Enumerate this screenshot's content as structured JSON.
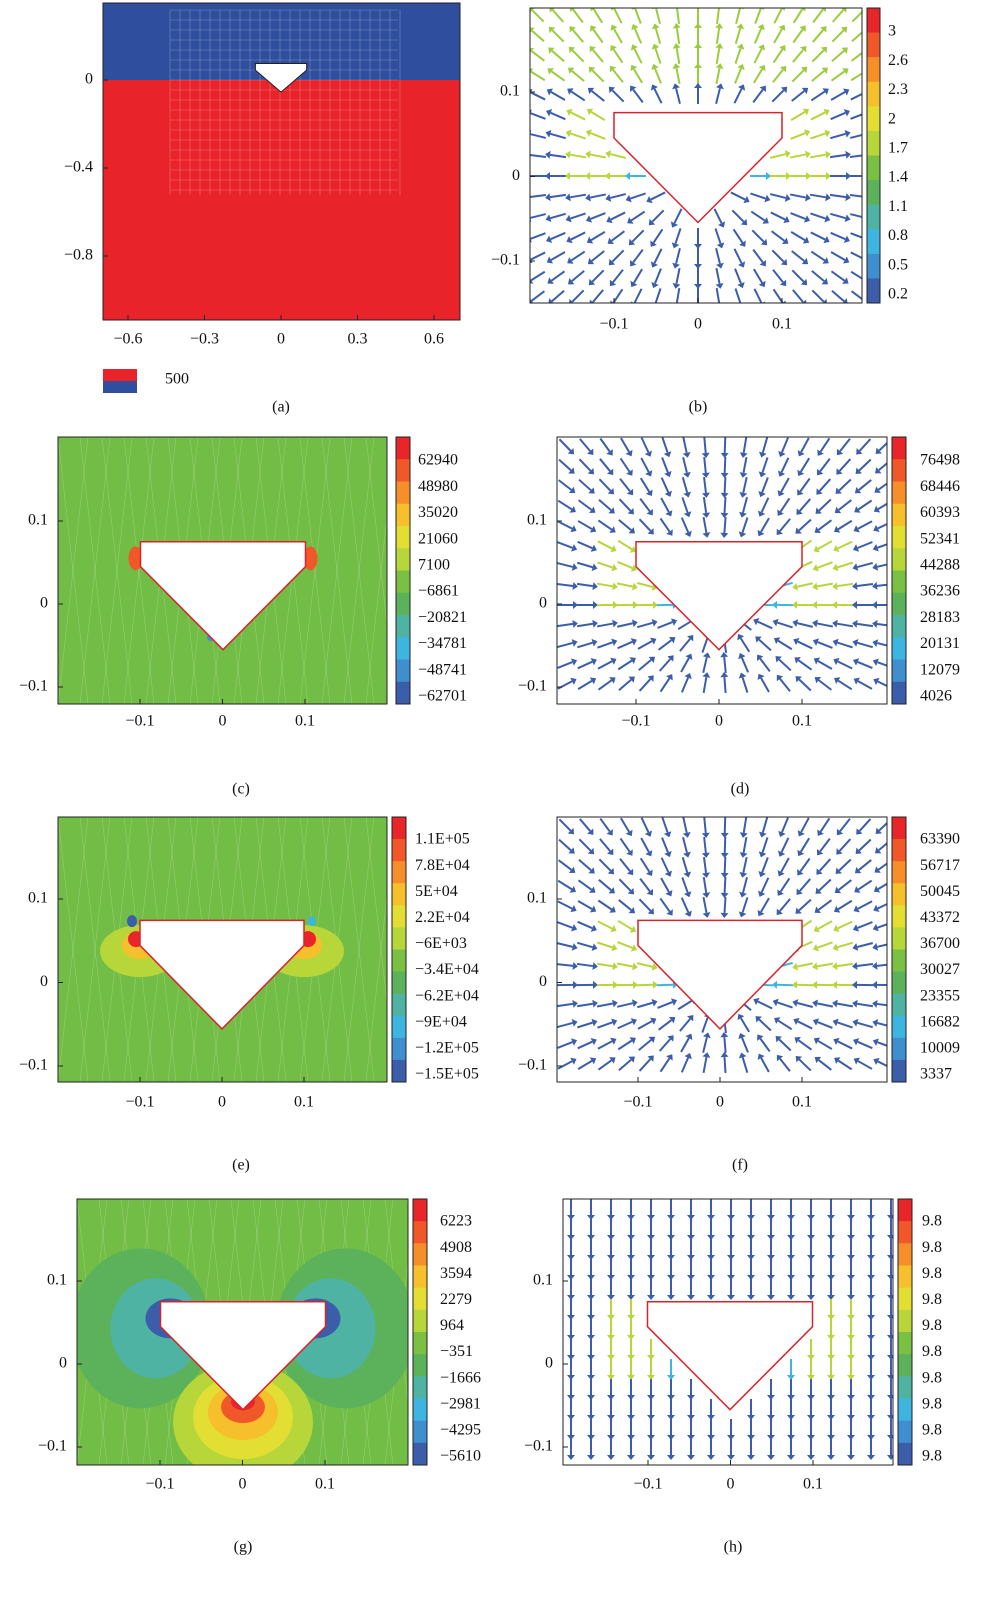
{
  "panels": [
    {
      "caption": "(a)",
      "yticks": [
        "0",
        "−0.4",
        "−0.8"
      ],
      "xticks": [
        "−0.6",
        "−0.3",
        "0",
        "0.3",
        "0.6"
      ],
      "legend": "500"
    },
    {
      "caption": "(b)",
      "yticks": [
        "0.1",
        "0",
        "−0.1"
      ],
      "xticks": [
        "−0.1",
        "0",
        "0.1"
      ],
      "colorbar": [
        "3",
        "2.6",
        "2.3",
        "2",
        "1.7",
        "1.4",
        "1.1",
        "0.8",
        "0.5",
        "0.2"
      ]
    },
    {
      "caption": "(c)",
      "yticks": [
        "0.1",
        "0",
        "−0.1"
      ],
      "xticks": [
        "−0.1",
        "0",
        "0.1"
      ],
      "colorbar": [
        "62940",
        "48980",
        "35020",
        "21060",
        "7100",
        "−6861",
        "−20821",
        "−34781",
        "−48741",
        "−62701"
      ]
    },
    {
      "caption": "(d)",
      "yticks": [
        "0.1",
        "0",
        "−0.1"
      ],
      "xticks": [
        "−0.1",
        "0",
        "0.1"
      ],
      "colorbar": [
        "76498",
        "68446",
        "60393",
        "52341",
        "44288",
        "36236",
        "28183",
        "20131",
        "12079",
        "4026"
      ]
    },
    {
      "caption": "(e)",
      "yticks": [
        "0.1",
        "0",
        "−0.1"
      ],
      "xticks": [
        "−0.1",
        "0",
        "0.1"
      ],
      "colorbar": [
        "1.1E+05",
        "7.8E+04",
        "5E+04",
        "2.2E+04",
        "−6E+03",
        "−3.4E+04",
        "−6.2E+04",
        "−9E+04",
        "−1.2E+05",
        "−1.5E+05"
      ]
    },
    {
      "caption": "(f)",
      "yticks": [
        "0.1",
        "0",
        "−0.1"
      ],
      "xticks": [
        "−0.1",
        "0",
        "0.1"
      ],
      "colorbar": [
        "63390",
        "56717",
        "50045",
        "43372",
        "36700",
        "30027",
        "23355",
        "16682",
        "10009",
        "3337"
      ]
    },
    {
      "caption": "(g)",
      "yticks": [
        "0.1",
        "0",
        "−0.1"
      ],
      "xticks": [
        "−0.1",
        "0",
        "0.1"
      ],
      "colorbar": [
        "6223",
        "4908",
        "3594",
        "2279",
        "964",
        "−351",
        "−1666",
        "−2981",
        "−4295",
        "−5610"
      ]
    },
    {
      "caption": "(h)",
      "yticks": [
        "0.1",
        "0",
        "−0.1"
      ],
      "xticks": [
        "−0.1",
        "0",
        "0.1"
      ],
      "colorbar": [
        "9.8",
        "9.8",
        "9.8",
        "9.8",
        "9.8",
        "9.8",
        "9.8",
        "9.8",
        "9.8",
        "9.8"
      ]
    }
  ]
}
